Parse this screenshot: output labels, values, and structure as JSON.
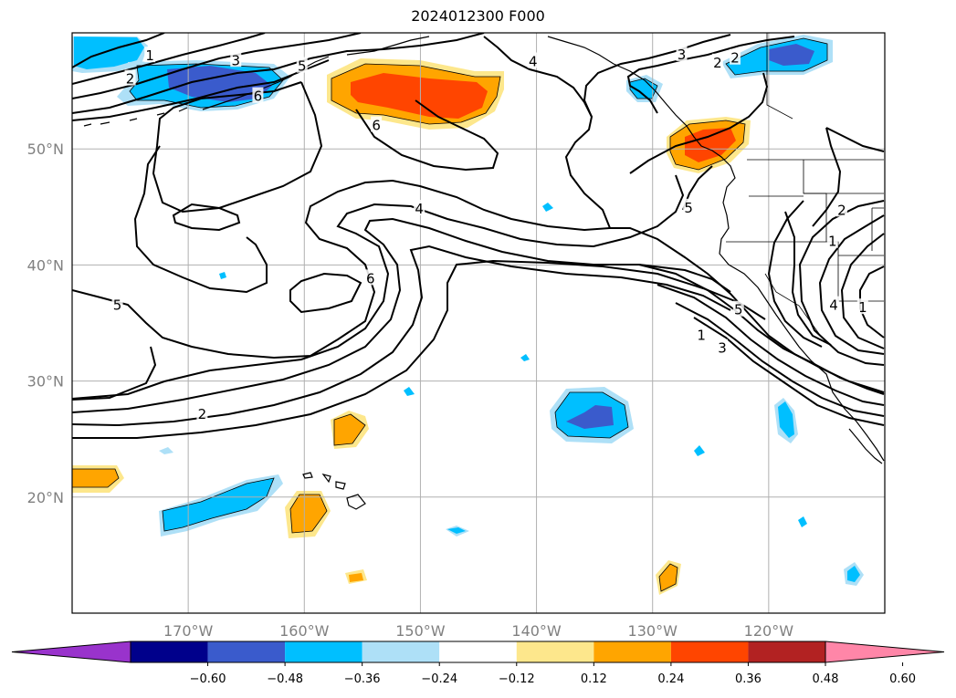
{
  "chart_data": {
    "type": "map",
    "title": "2024012300 F000",
    "lon_range": [
      -180,
      -110
    ],
    "lat_range": [
      10,
      60
    ],
    "lon_ticks": [
      {
        "lon": -170,
        "label": "170°W"
      },
      {
        "lon": -160,
        "label": "160°W"
      },
      {
        "lon": -150,
        "label": "150°W"
      },
      {
        "lon": -140,
        "label": "140°W"
      },
      {
        "lon": -130,
        "label": "130°W"
      },
      {
        "lon": -120,
        "label": "120°W"
      }
    ],
    "lat_ticks": [
      {
        "lat": 20,
        "label": "20°N"
      },
      {
        "lat": 30,
        "label": "30°N"
      },
      {
        "lat": 40,
        "label": "40°N"
      },
      {
        "lat": 50,
        "label": "50°N"
      }
    ],
    "grid": true,
    "colorbar": {
      "orientation": "horizontal",
      "extend": "both",
      "levels": [
        -0.6,
        -0.48,
        -0.36,
        -0.24,
        -0.12,
        0.12,
        0.24,
        0.36,
        0.48,
        0.6
      ],
      "tick_labels": [
        "−0.60",
        "−0.48",
        "−0.36",
        "−0.24",
        "−0.12",
        "0.12",
        "0.24",
        "0.36",
        "0.48",
        "0.60"
      ],
      "colors": [
        "#9933cc",
        "#00008b",
        "#3a5bcc",
        "#00bfff",
        "#aee0f7",
        "#ffffff",
        "#fde78c",
        "#ffa500",
        "#ff4500",
        "#b22222",
        "#ff86a8"
      ]
    },
    "contour_labels": [
      {
        "text": "1",
        "lon": -173.3,
        "lat": 58.1
      },
      {
        "text": "2",
        "lon": -175.0,
        "lat": 56.1
      },
      {
        "text": "3",
        "lon": -165.9,
        "lat": 57.7
      },
      {
        "text": "5",
        "lon": -160.2,
        "lat": 57.2
      },
      {
        "text": "6",
        "lon": -164.0,
        "lat": 54.6
      },
      {
        "text": "6",
        "lon": -153.8,
        "lat": 52.1
      },
      {
        "text": "4",
        "lon": -140.3,
        "lat": 57.6
      },
      {
        "text": "3",
        "lon": -127.5,
        "lat": 58.2
      },
      {
        "text": "2",
        "lon": -124.4,
        "lat": 57.5
      },
      {
        "text": "2",
        "lon": -122.9,
        "lat": 57.9
      },
      {
        "text": "5",
        "lon": -126.9,
        "lat": 45.0
      },
      {
        "text": "4",
        "lon": -150.1,
        "lat": 44.9
      },
      {
        "text": "6",
        "lon": -154.3,
        "lat": 38.9
      },
      {
        "text": "5",
        "lon": -176.1,
        "lat": 36.6
      },
      {
        "text": "2",
        "lon": -168.8,
        "lat": 27.2
      },
      {
        "text": "1",
        "lon": -125.8,
        "lat": 34.0
      },
      {
        "text": "3",
        "lon": -124.0,
        "lat": 32.9
      },
      {
        "text": "5",
        "lon": -122.6,
        "lat": 36.2
      },
      {
        "text": "2",
        "lon": -113.7,
        "lat": 44.8
      },
      {
        "text": "1",
        "lon": -114.5,
        "lat": 42.1
      },
      {
        "text": "4",
        "lon": -114.4,
        "lat": 36.6
      },
      {
        "text": "1",
        "lon": -111.9,
        "lat": 36.4
      }
    ],
    "shaded_regions": [
      {
        "category": "-0.36 to -0.24",
        "color": "#00bfff",
        "center_lon": -178.0,
        "center_lat": 58.3
      },
      {
        "category": "-0.48 to -0.36",
        "color": "#3a5bcc",
        "center_lon": -165.5,
        "center_lat": 55.8
      },
      {
        "category": "0.36 to 0.48",
        "color": "#ff4500",
        "center_lon": -149.0,
        "center_lat": 54.5
      },
      {
        "category": "-0.36 to -0.24",
        "color": "#00bfff",
        "center_lon": -130.7,
        "center_lat": 55.4
      },
      {
        "category": "0.36 to 0.48",
        "color": "#ff4500",
        "center_lon": -126.0,
        "center_lat": 50.0
      },
      {
        "category": "-0.48 to -0.36",
        "color": "#3a5bcc",
        "center_lon": -117.8,
        "center_lat": 58.6
      },
      {
        "category": "0.24 to 0.36",
        "color": "#ffa500",
        "center_lon": -177.8,
        "center_lat": 21.6
      },
      {
        "category": "-0.36 to -0.24",
        "color": "#00bfff",
        "center_lon": -167.1,
        "center_lat": 19.5
      },
      {
        "category": "0.24 to 0.36",
        "color": "#ffa500",
        "center_lon": -159.9,
        "center_lat": 18.5
      },
      {
        "category": "0.24 to 0.36",
        "color": "#ffa500",
        "center_lon": -156.2,
        "center_lat": 26.0
      },
      {
        "category": "-0.48 to -0.36",
        "color": "#3a5bcc",
        "center_lon": -134.0,
        "center_lat": 26.6
      },
      {
        "category": "-0.36 to -0.24",
        "color": "#00bfff",
        "center_lon": -118.5,
        "center_lat": 26.4
      },
      {
        "category": "0.24 to 0.36",
        "color": "#ffa500",
        "center_lon": -131.0,
        "center_lat": 13.0
      },
      {
        "category": "-0.36 to -0.24",
        "color": "#00bfff",
        "center_lon": -113.0,
        "center_lat": 13.2
      }
    ]
  }
}
